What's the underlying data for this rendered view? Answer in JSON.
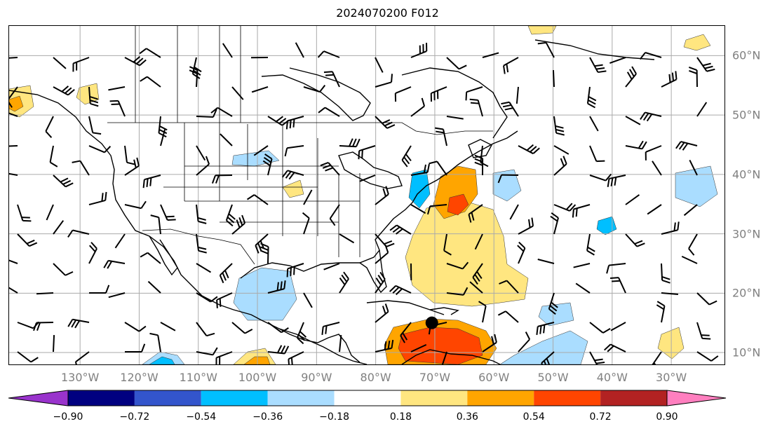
{
  "title": "2024070200 F012",
  "map": {
    "lon_range": [
      -142,
      -21
    ],
    "lat_range": [
      8,
      65
    ],
    "lat_ticks": [
      {
        "value": 10,
        "label": "10°N"
      },
      {
        "value": 20,
        "label": "20°N"
      },
      {
        "value": 30,
        "label": "30°N"
      },
      {
        "value": 40,
        "label": "40°N"
      },
      {
        "value": 50,
        "label": "50°N"
      },
      {
        "value": 60,
        "label": "60°N"
      }
    ],
    "lon_ticks": [
      {
        "value": -130,
        "label": "130°W"
      },
      {
        "value": -120,
        "label": "120°W"
      },
      {
        "value": -110,
        "label": "110°W"
      },
      {
        "value": -100,
        "label": "100°W"
      },
      {
        "value": -90,
        "label": "90°W"
      },
      {
        "value": -80,
        "label": "80°W"
      },
      {
        "value": -70,
        "label": "70°W"
      },
      {
        "value": -60,
        "label": "60°W"
      },
      {
        "value": -50,
        "label": "50°W"
      },
      {
        "value": -40,
        "label": "40°W"
      },
      {
        "value": -30,
        "label": "30°W"
      }
    ],
    "gridlines": true,
    "storm_marker": {
      "lon": -70.5,
      "lat": 15
    }
  },
  "colorbar": {
    "levels": [
      "−0.90",
      "−0.72",
      "−0.54",
      "−0.36",
      "−0.18",
      "0.18",
      "0.36",
      "0.54",
      "0.72",
      "0.90"
    ],
    "colors": [
      "#9933cc",
      "#000080",
      "#3355cc",
      "#00bfff",
      "#aaddff",
      "#ffffff",
      "#ffe680",
      "#ffa500",
      "#ff4500",
      "#b22222",
      "#ff7fbf"
    ],
    "extend": "both"
  }
}
